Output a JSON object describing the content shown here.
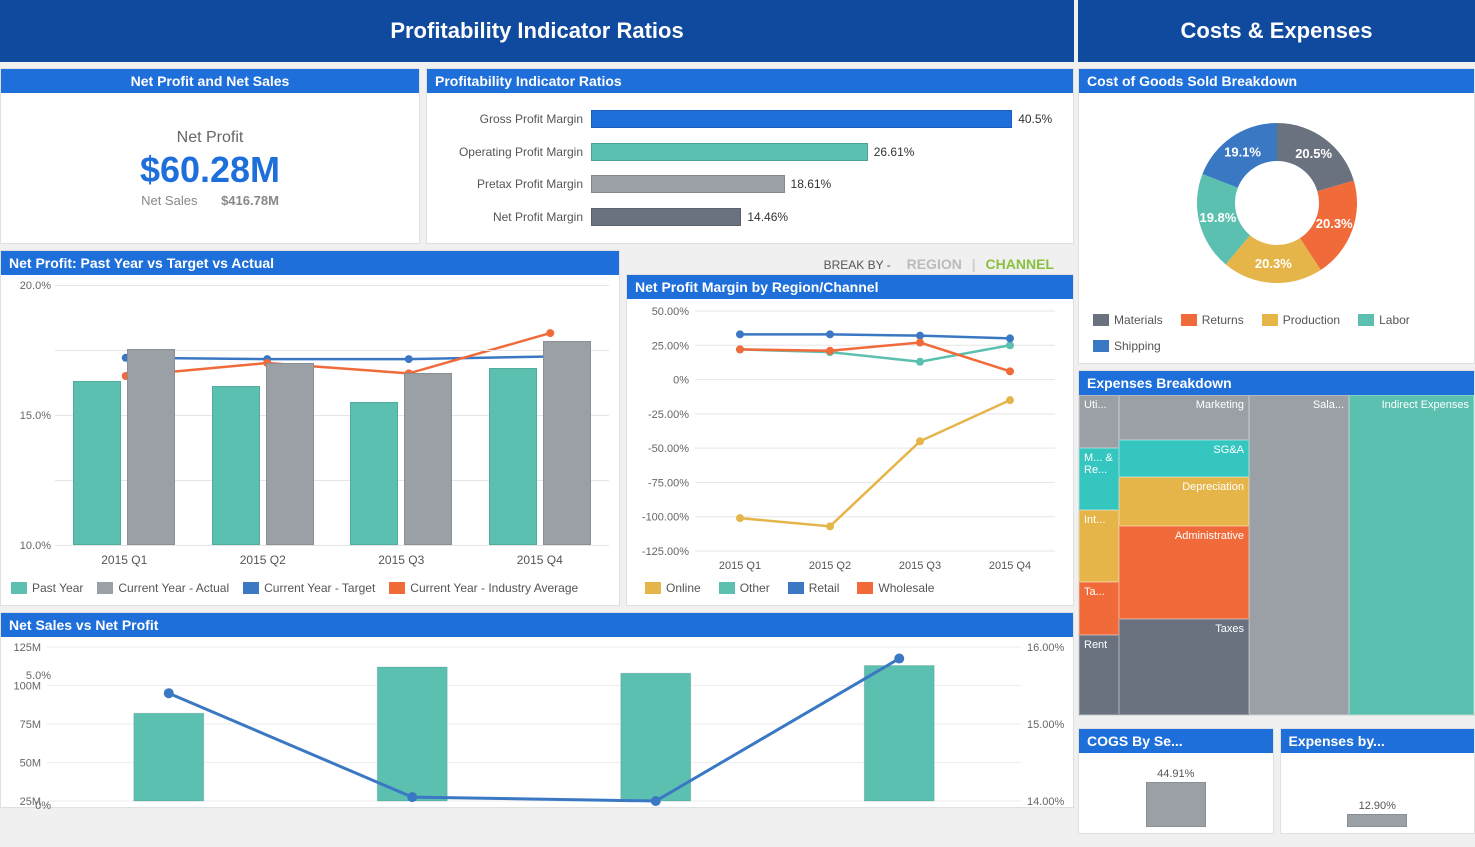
{
  "palette": {
    "header_dark": "#104a9e",
    "header_light": "#1e6fd9",
    "teal": "#5bc0b0",
    "gray": "#9aa0a6",
    "blue": "#3b78c4",
    "orange": "#f06a3a",
    "mustard": "#e6b54a",
    "slate": "#6a7280",
    "cyan": "#36c6c0",
    "dkgray": "#7b8088"
  },
  "left_title": "Profitability Indicator Ratios",
  "right_title": "Costs & Expenses",
  "kpi": {
    "panel_title": "Net Profit and Net Sales",
    "title": "Net Profit",
    "value": "$60.28M",
    "sub_label": "Net Sales",
    "sub_value": "$416.78M"
  },
  "ratios": {
    "panel_title": "Profitability Indicator Ratios",
    "max": 45,
    "items": [
      {
        "label": "Gross Profit Margin",
        "value": 40.5,
        "display": "40.5%",
        "color": "#1e6fd9"
      },
      {
        "label": "Operating Profit Margin",
        "value": 26.61,
        "display": "26.61%",
        "color": "#5bc0b0"
      },
      {
        "label": "Pretax Profit Margin",
        "value": 18.61,
        "display": "18.61%",
        "color": "#9aa0a6"
      },
      {
        "label": "Net Profit Margin",
        "value": 14.46,
        "display": "14.46%",
        "color": "#6a7280"
      }
    ]
  },
  "breakby": {
    "label": "BREAK BY -",
    "tabs": [
      "REGION",
      "CHANNEL"
    ],
    "active": "CHANNEL"
  },
  "grouped": {
    "panel_title": "Net Profit: Past Year vs Target vs Actual",
    "ymin": 0,
    "ymax": 20,
    "ystep": 5,
    "ysuffix": ".0%",
    "categories": [
      "2015 Q1",
      "2015 Q2",
      "2015 Q3",
      "2015 Q4"
    ],
    "series_bars": [
      {
        "name": "Past Year",
        "color": "#5bc0b0",
        "values": [
          12.6,
          12.2,
          11.0,
          13.6
        ]
      },
      {
        "name": "Current Year - Actual",
        "color": "#9aa0a6",
        "values": [
          15.1,
          14.0,
          13.2,
          15.7
        ]
      }
    ],
    "series_lines": [
      {
        "name": "Current Year - Target",
        "color": "#3b78c4",
        "values": [
          14.4,
          14.3,
          14.3,
          14.5
        ]
      },
      {
        "name": "Current Year - Industry Average",
        "color": "#f06a3a",
        "values": [
          13.0,
          14.0,
          13.2,
          16.3
        ]
      }
    ],
    "legend": [
      {
        "label": "Past Year",
        "color": "#5bc0b0"
      },
      {
        "label": "Current Year - Actual",
        "color": "#9aa0a6"
      },
      {
        "label": "Current Year - Target",
        "color": "#3b78c4"
      },
      {
        "label": "Current Year - Industry Average",
        "color": "#f06a3a"
      }
    ]
  },
  "region_channel": {
    "panel_title": "Net Profit Margin by Region/Channel",
    "ymin": -125,
    "ymax": 50,
    "ystep": 25,
    "ysuffix": ".00%",
    "categories": [
      "2015 Q1",
      "2015 Q2",
      "2015 Q3",
      "2015 Q4"
    ],
    "series": [
      {
        "name": "Online",
        "color": "#e6b54a",
        "values": [
          -101,
          -107,
          -45,
          -15
        ]
      },
      {
        "name": "Other",
        "color": "#5bc0b0",
        "values": [
          22,
          20,
          13,
          25
        ]
      },
      {
        "name": "Retail",
        "color": "#3b78c4",
        "values": [
          33,
          33,
          32,
          30
        ]
      },
      {
        "name": "Wholesale",
        "color": "#f06a3a",
        "values": [
          22,
          21,
          27,
          6
        ]
      }
    ]
  },
  "combo": {
    "panel_title": "Net Sales vs Net Profit",
    "categories": [
      "",
      "",
      "",
      ""
    ],
    "yleft": {
      "min": 25,
      "max": 125,
      "step": 25,
      "suffix": "M"
    },
    "yright": {
      "min": 14,
      "max": 16,
      "step": 1,
      "suffix": ".00%"
    },
    "bars": {
      "color": "#5bc0b0",
      "values": [
        82,
        112,
        108,
        113
      ]
    },
    "line": {
      "color": "#3b78c4",
      "values": [
        15.4,
        14.05,
        14.0,
        15.85
      ]
    }
  },
  "donut": {
    "panel_title": "Cost of Goods Sold Breakdown",
    "slices": [
      {
        "name": "Materials",
        "value": 20.5,
        "display": "20.5%",
        "color": "#6a7280"
      },
      {
        "name": "Returns",
        "value": 20.3,
        "display": "20.3%",
        "color": "#f06a3a"
      },
      {
        "name": "Production",
        "value": 20.3,
        "display": "20.3%",
        "color": "#e6b54a"
      },
      {
        "name": "Labor",
        "value": 19.8,
        "display": "19.8%",
        "color": "#5bc0b0"
      },
      {
        "name": "Shipping",
        "value": 19.1,
        "display": "19.1%",
        "color": "#3b78c4"
      }
    ]
  },
  "treemap": {
    "panel_title": "Expenses Breakdown",
    "cells": {
      "utilities": "Uti...",
      "m_and_re": "M... & Re...",
      "int": "Int...",
      "taxes_small": "Ta...",
      "rent": "Rent",
      "marketing": "Marketing",
      "sga": "SG&A",
      "depreciation": "Depreciation",
      "administrative": "Administrative",
      "taxes": "Taxes",
      "sala": "Sala...",
      "indirect": "Indirect Expenses"
    }
  },
  "mini": {
    "cogs": {
      "panel_title": "COGS By Se...",
      "value": 44.91,
      "display": "44.91%",
      "color": "#9aa0a6"
    },
    "exp": {
      "panel_title": "Expenses by...",
      "value": 12.9,
      "display": "12.90%",
      "color": "#9aa0a6"
    }
  }
}
